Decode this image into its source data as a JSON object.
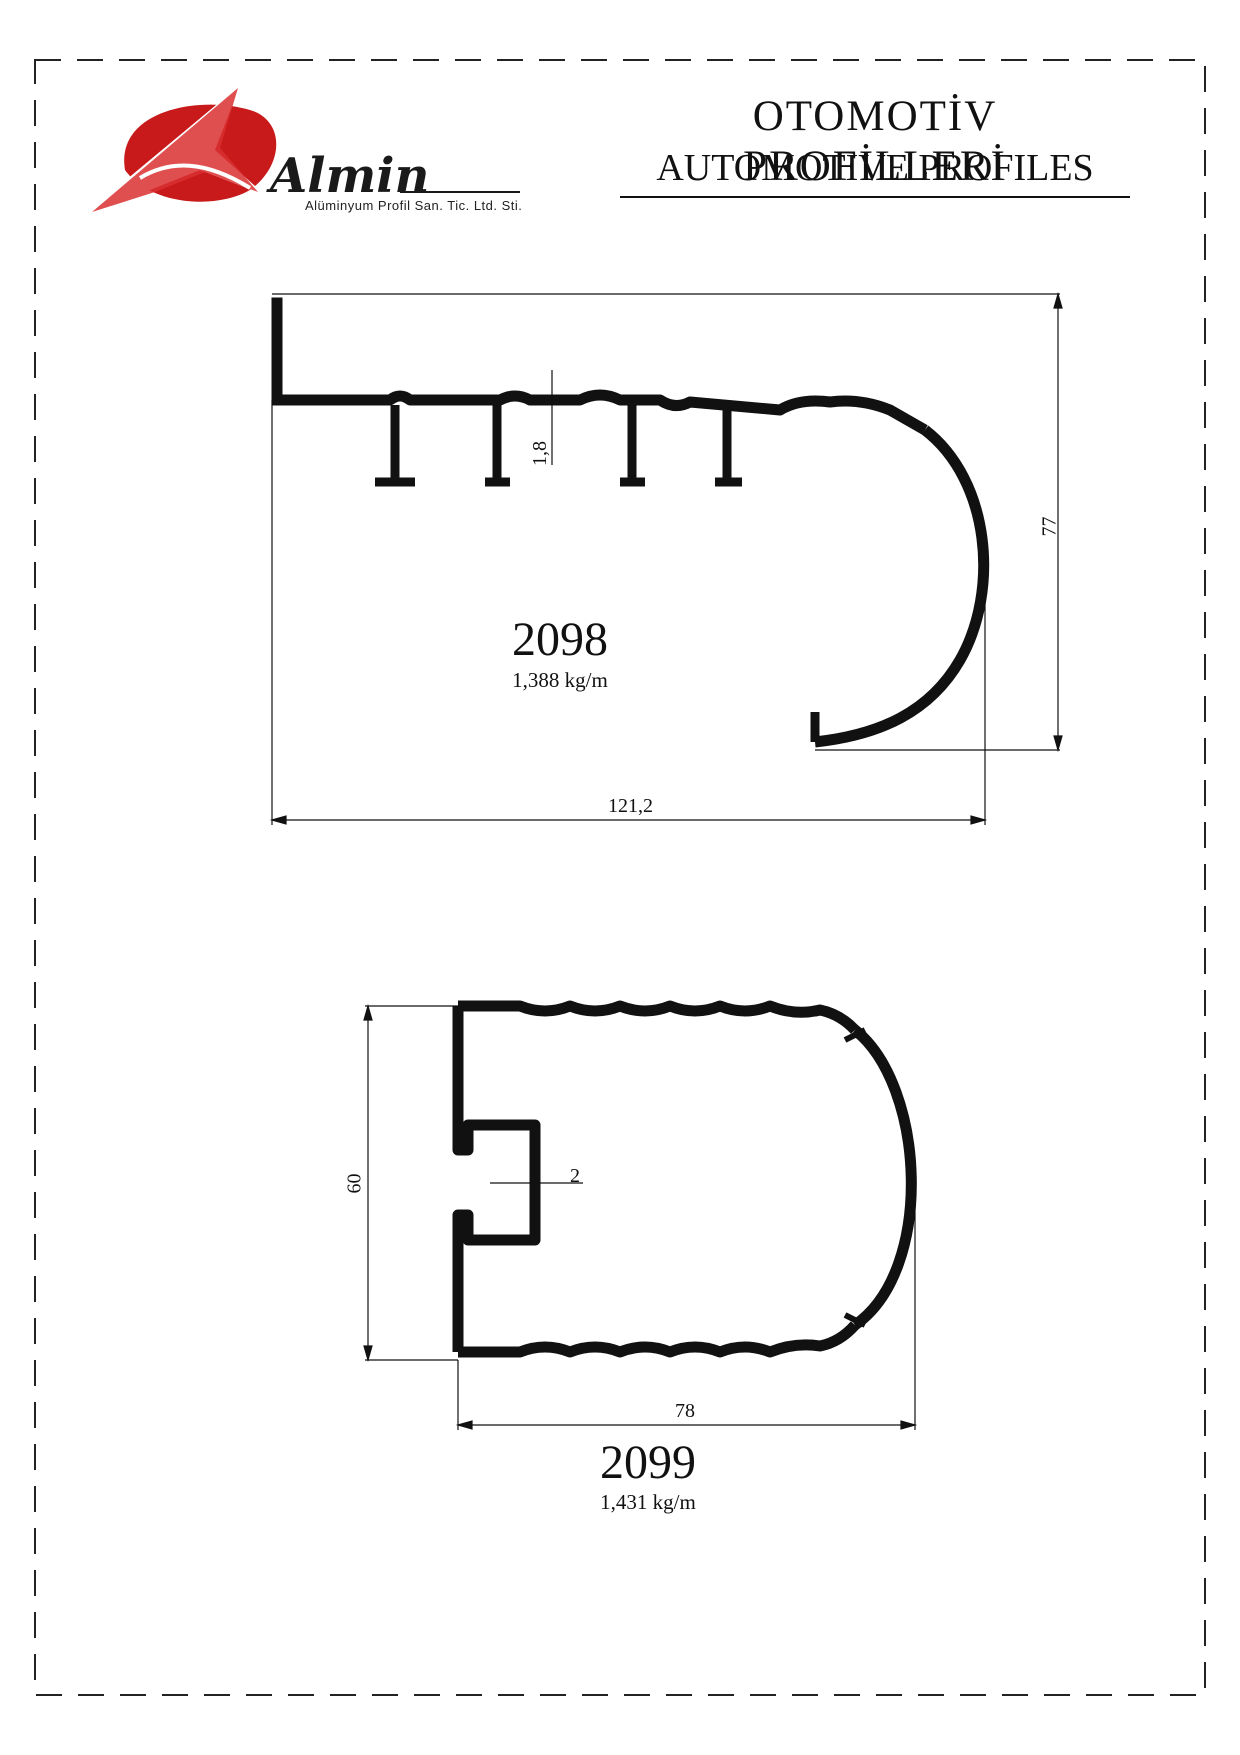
{
  "header": {
    "title_tr": "OTOMOTİV  PROFİLLERİ",
    "title_en": "AUTOMOTIVE PROFILES"
  },
  "logo": {
    "brand": "Almin",
    "company": "Alüminyum Profil San. Tic. Ltd. Sti.",
    "colors": {
      "red": "#c8191b",
      "dark": "#1a1a1a"
    }
  },
  "profiles": [
    {
      "code": "2098",
      "weight": "1,388 kg/m",
      "dims": {
        "height": "77",
        "width": "121,2",
        "thickness": "1,8"
      }
    },
    {
      "code": "2099",
      "weight": "1,431 kg/m",
      "dims": {
        "height": "60",
        "width": "78",
        "thickness": "2"
      }
    }
  ]
}
